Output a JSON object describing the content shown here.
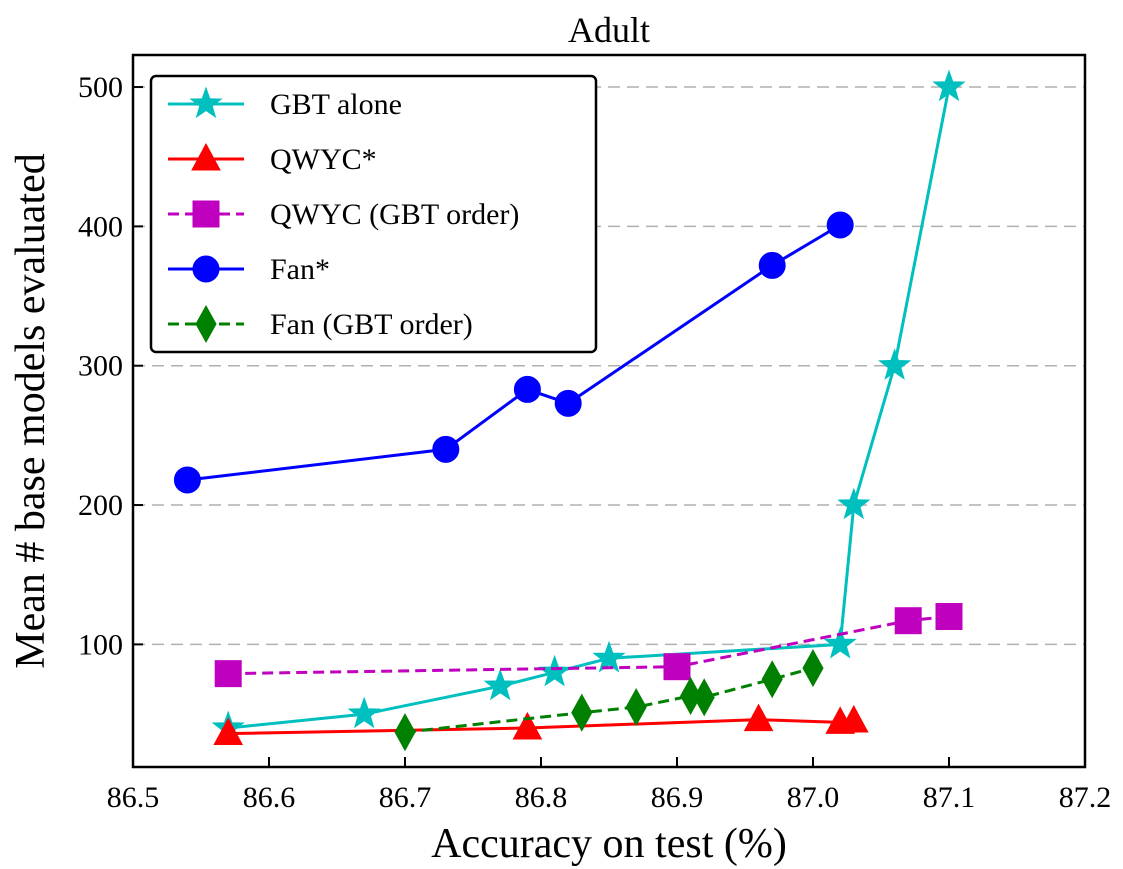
{
  "chart_data": {
    "type": "line",
    "title": "Adult",
    "xlabel": "Accuracy on test (%)",
    "ylabel": "Mean # base models evaluated",
    "xlim": [
      86.5,
      87.2
    ],
    "ylim": [
      12,
      523
    ],
    "xticks": [
      "86.5",
      "86.6",
      "86.7",
      "86.8",
      "86.9",
      "87.0",
      "87.1",
      "87.2"
    ],
    "yticks": [
      "100",
      "200",
      "300",
      "400",
      "500"
    ],
    "grid": "horizontal dashed",
    "legend_position": "top-left",
    "series": [
      {
        "name": "GBT alone",
        "color": "#00bfbf",
        "marker": "star",
        "linestyle": "solid",
        "x": [
          86.57,
          86.67,
          86.77,
          86.81,
          86.85,
          87.02,
          87.03,
          87.06,
          87.1
        ],
        "y": [
          40,
          50,
          70,
          80,
          90,
          100,
          200,
          300,
          500
        ]
      },
      {
        "name": "QWYC*",
        "color": "#ff0000",
        "marker": "triangle",
        "linestyle": "solid",
        "x": [
          86.57,
          86.79,
          86.96,
          87.02,
          87.03
        ],
        "y": [
          36,
          40,
          46,
          44,
          45
        ]
      },
      {
        "name": "QWYC (GBT order)",
        "color": "#bf00bf",
        "marker": "square",
        "linestyle": "dashed",
        "x": [
          86.57,
          86.9,
          87.07,
          87.1
        ],
        "y": [
          79,
          84,
          117,
          120
        ]
      },
      {
        "name": "Fan*",
        "color": "#0000ff",
        "marker": "circle",
        "linestyle": "solid",
        "x": [
          86.54,
          86.73,
          86.79,
          86.82,
          86.97,
          87.02
        ],
        "y": [
          218,
          240,
          283,
          273,
          372,
          401
        ]
      },
      {
        "name": "Fan (GBT order)",
        "color": "#008000",
        "marker": "diamond",
        "linestyle": "dashed",
        "x": [
          86.7,
          86.83,
          86.87,
          86.91,
          86.92,
          86.97,
          87.0
        ],
        "y": [
          37,
          51,
          55,
          63,
          62,
          75,
          83
        ]
      }
    ]
  }
}
